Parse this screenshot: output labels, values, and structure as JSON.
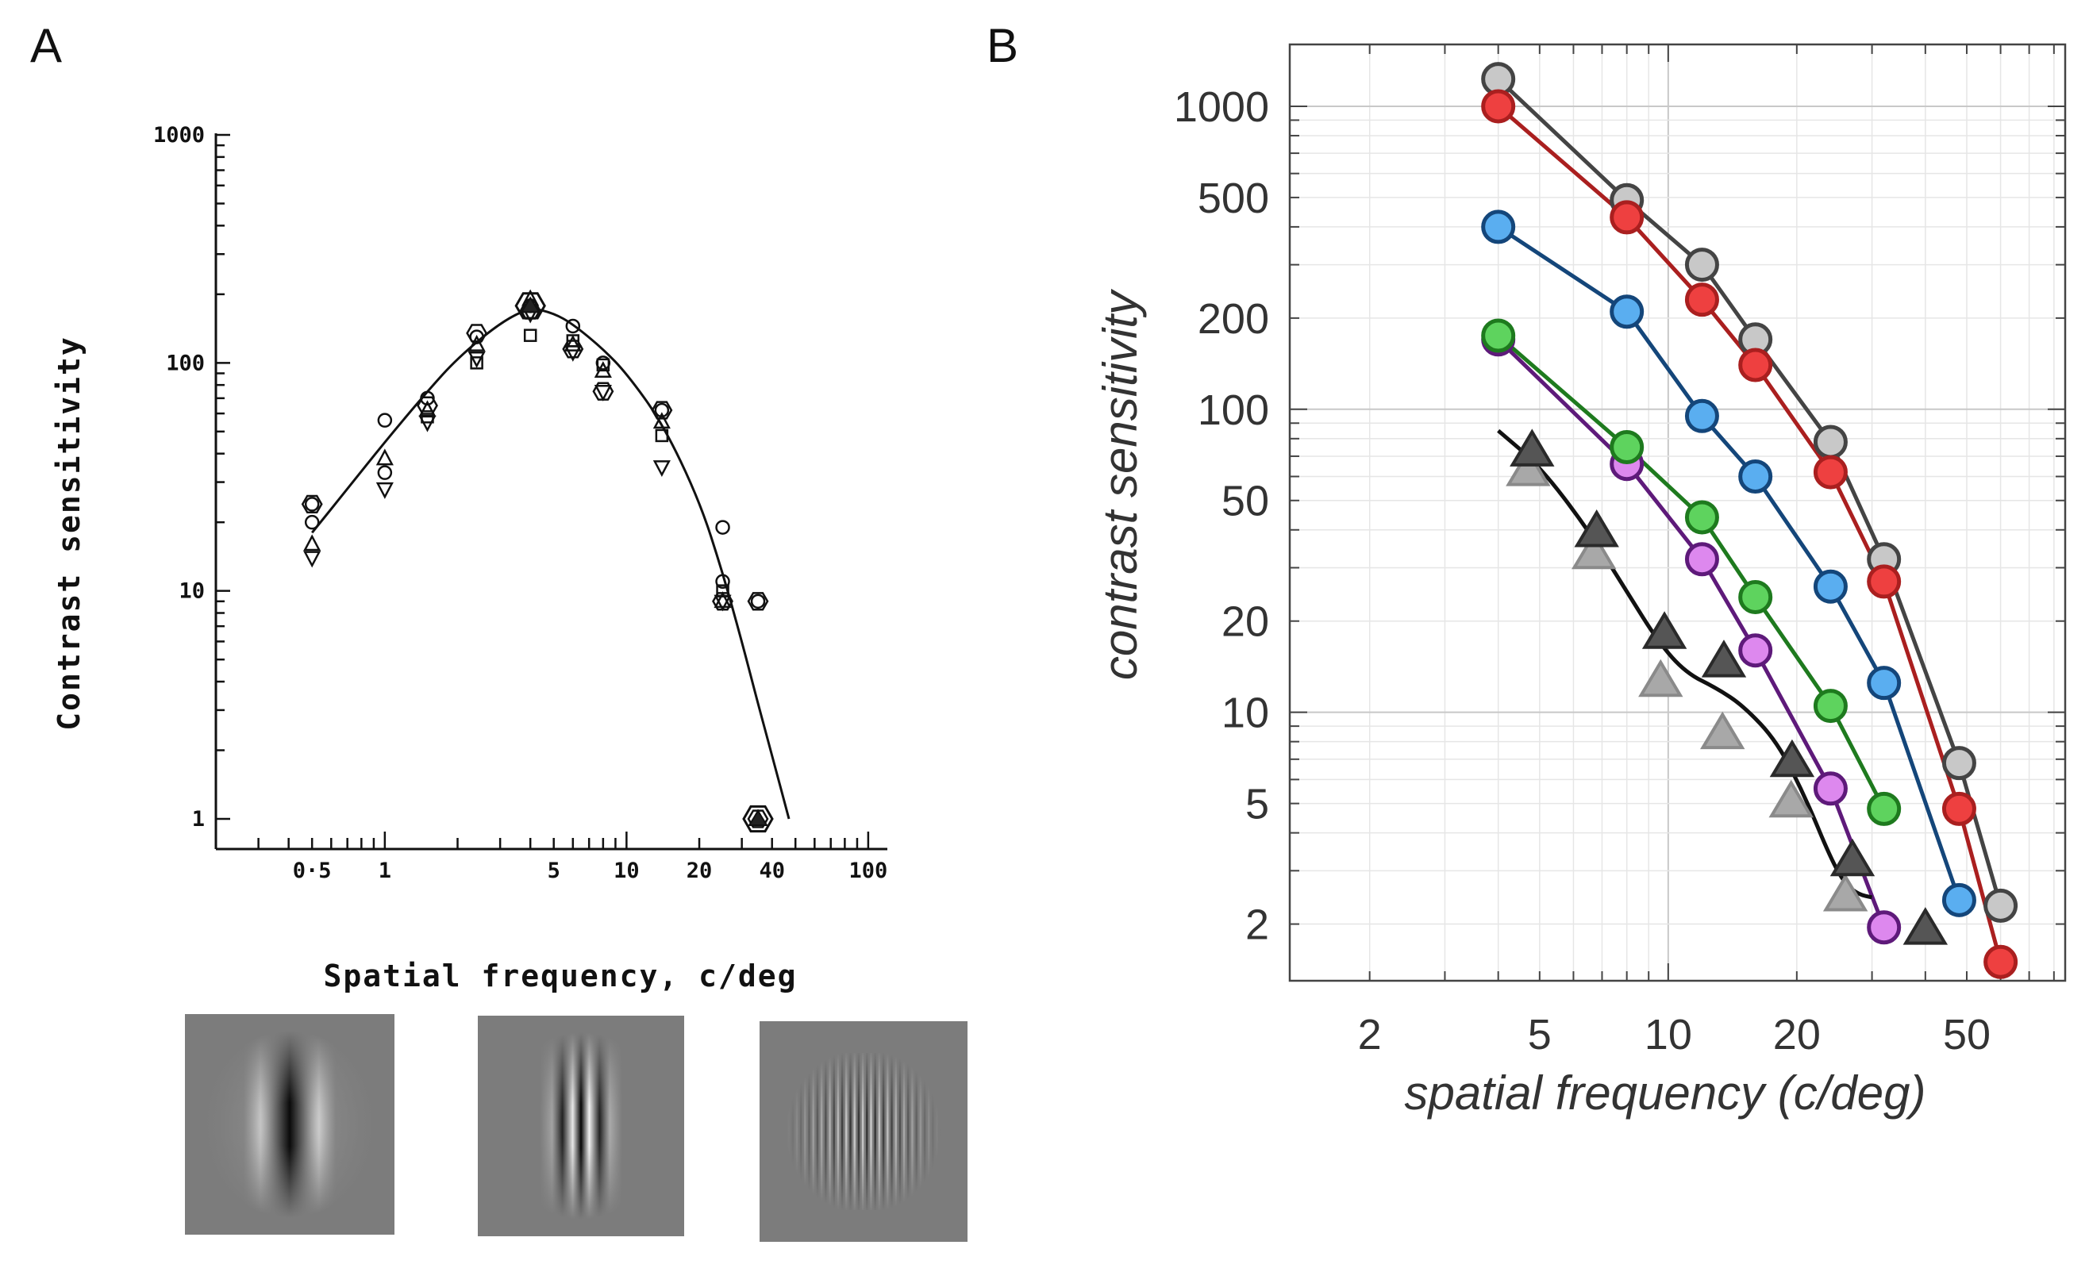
{
  "panels": {
    "a_label": "A",
    "b_label": "B"
  },
  "chart_data": [
    {
      "panel": "A",
      "type": "scatter",
      "xlabel": "Spatial frequency, c/deg",
      "ylabel": "Contrast sensitivity",
      "xscale": "log",
      "yscale": "log",
      "xlim": [
        0.2,
        120
      ],
      "ylim": [
        1,
        1000
      ],
      "x_tick_labels": [
        {
          "value": 0.5,
          "label": "0·5"
        },
        {
          "value": 1,
          "label": "1"
        },
        {
          "value": 5,
          "label": "5"
        },
        {
          "value": 10,
          "label": "10"
        },
        {
          "value": 20,
          "label": "20"
        },
        {
          "value": 40,
          "label": "40"
        },
        {
          "value": 100,
          "label": "100"
        }
      ],
      "y_tick_labels": [
        {
          "value": 1,
          "label": "1"
        },
        {
          "value": 10,
          "label": "10"
        },
        {
          "value": 100,
          "label": "100"
        },
        {
          "value": 1000,
          "label": "1000"
        }
      ],
      "grid": false,
      "series": [
        {
          "marker": "circle",
          "points": [
            [
              0.5,
              24
            ],
            [
              0.5,
              20
            ],
            [
              1,
              56
            ],
            [
              1,
              33
            ],
            [
              1.5,
              70
            ],
            [
              2.4,
              130
            ],
            [
              4,
              178
            ],
            [
              6,
              145
            ],
            [
              8,
              100
            ],
            [
              14,
              62
            ],
            [
              25,
              19
            ],
            [
              25,
              11
            ],
            [
              35,
              9
            ]
          ]
        },
        {
          "marker": "triangle-up",
          "points": [
            [
              0.5,
              16
            ],
            [
              1,
              38
            ],
            [
              1.5,
              62
            ],
            [
              2.4,
              120
            ],
            [
              4,
              190
            ],
            [
              6,
              120
            ],
            [
              8,
              92
            ],
            [
              14,
              55
            ],
            [
              25,
              9
            ],
            [
              35,
              1
            ]
          ]
        },
        {
          "marker": "triangle-down",
          "points": [
            [
              0.5,
              14
            ],
            [
              1,
              28
            ],
            [
              1.5,
              55
            ],
            [
              2.4,
              105
            ],
            [
              4,
              165
            ],
            [
              6,
              112
            ],
            [
              8,
              75
            ],
            [
              14,
              35
            ],
            [
              25,
              9
            ]
          ]
        },
        {
          "marker": "square",
          "points": [
            [
              1.5,
              58
            ],
            [
              2.4,
              100
            ],
            [
              4,
              132
            ],
            [
              6,
              125
            ],
            [
              8,
              98
            ],
            [
              14,
              48
            ],
            [
              25,
              10
            ]
          ]
        },
        {
          "marker": "hexagon",
          "points": [
            [
              0.5,
              24
            ],
            [
              1.5,
              65
            ],
            [
              2.4,
              135
            ],
            [
              4,
              170
            ],
            [
              6,
              115
            ],
            [
              8,
              75
            ],
            [
              14,
              62
            ],
            [
              25,
              9
            ],
            [
              35,
              9
            ],
            [
              35,
              1
            ]
          ]
        }
      ],
      "fit_curve": [
        [
          0.5,
          18
        ],
        [
          0.7,
          28
        ],
        [
          1,
          45
        ],
        [
          1.5,
          75
        ],
        [
          2,
          105
        ],
        [
          3,
          150
        ],
        [
          4,
          175
        ],
        [
          5,
          165
        ],
        [
          6,
          148
        ],
        [
          8,
          115
        ],
        [
          10,
          90
        ],
        [
          14,
          55
        ],
        [
          20,
          25
        ],
        [
          25,
          12
        ],
        [
          30,
          6
        ],
        [
          35,
          3.2
        ],
        [
          40,
          1.9
        ],
        [
          47,
          1
        ]
      ]
    },
    {
      "panel": "B",
      "type": "line",
      "xlabel": "spatial frequency (c/deg)",
      "ylabel": "contrast sensitivity",
      "xscale": "log",
      "yscale": "log",
      "xlim": [
        1.3,
        85
      ],
      "ylim": [
        1.3,
        1600
      ],
      "x_ticks": [
        2,
        5,
        10,
        20,
        50
      ],
      "y_ticks": [
        2,
        5,
        10,
        20,
        50,
        100,
        200,
        500,
        1000
      ],
      "grid": true,
      "series": [
        {
          "color": "#c8c8c8",
          "line": "#444444",
          "marker": "circle",
          "points": [
            [
              4,
              1230
            ],
            [
              8,
              490
            ],
            [
              12,
              300
            ],
            [
              16,
              170
            ],
            [
              24,
              78
            ],
            [
              32,
              32
            ],
            [
              48,
              6.8
            ],
            [
              60,
              2.3
            ]
          ]
        },
        {
          "color": "#ee4040",
          "line": "#aa1f1f",
          "marker": "circle",
          "points": [
            [
              4,
              1000
            ],
            [
              8,
              430
            ],
            [
              12,
              230
            ],
            [
              16,
              140
            ],
            [
              24,
              62
            ],
            [
              32,
              27
            ],
            [
              48,
              4.8
            ],
            [
              60,
              1.5
            ]
          ]
        },
        {
          "color": "#5aaef0",
          "line": "#14467a",
          "marker": "circle",
          "points": [
            [
              4,
              400
            ],
            [
              8,
              210
            ],
            [
              12,
              95
            ],
            [
              16,
              60
            ],
            [
              24,
              26
            ],
            [
              32,
              12.5
            ],
            [
              48,
              2.4
            ]
          ]
        },
        {
          "color": "#5ed35e",
          "line": "#1e7a1e",
          "marker": "circle",
          "points": [
            [
              4,
              175
            ],
            [
              8,
              75
            ],
            [
              12,
              44
            ],
            [
              16,
              24
            ],
            [
              24,
              10.5
            ],
            [
              32,
              4.8
            ]
          ]
        },
        {
          "color": "#dd88ee",
          "line": "#5e1a7a",
          "marker": "circle",
          "points": [
            [
              4,
              170
            ],
            [
              8,
              66
            ],
            [
              12,
              32
            ],
            [
              16,
              16
            ],
            [
              24,
              5.6
            ],
            [
              32,
              1.95
            ]
          ]
        },
        {
          "color": "#555555",
          "line": "none",
          "marker": "triangle",
          "points": [
            [
              4.8,
              72
            ],
            [
              6.8,
              39
            ],
            [
              9.8,
              18
            ],
            [
              13.5,
              14.5
            ],
            [
              19.5,
              6.8
            ],
            [
              27,
              3.2
            ],
            [
              40,
              1.9
            ]
          ]
        },
        {
          "color": "#a8a8a8",
          "line": "none",
          "marker": "triangle",
          "points": [
            [
              4.7,
              62
            ],
            [
              6.7,
              33
            ],
            [
              9.6,
              12.5
            ],
            [
              13.4,
              8.4
            ],
            [
              19.4,
              5
            ],
            [
              26,
              2.45
            ]
          ]
        }
      ],
      "fit_curve": [
        [
          4,
          85
        ],
        [
          5,
          65
        ],
        [
          6.5,
          40
        ],
        [
          8,
          25
        ],
        [
          9.5,
          17
        ],
        [
          11,
          13.5
        ],
        [
          13,
          12
        ],
        [
          15,
          10.5
        ],
        [
          18,
          8
        ],
        [
          21,
          5.2
        ],
        [
          24,
          3.3
        ],
        [
          26,
          2.7
        ],
        [
          28,
          2.5
        ],
        [
          30,
          2.45
        ]
      ]
    }
  ]
}
